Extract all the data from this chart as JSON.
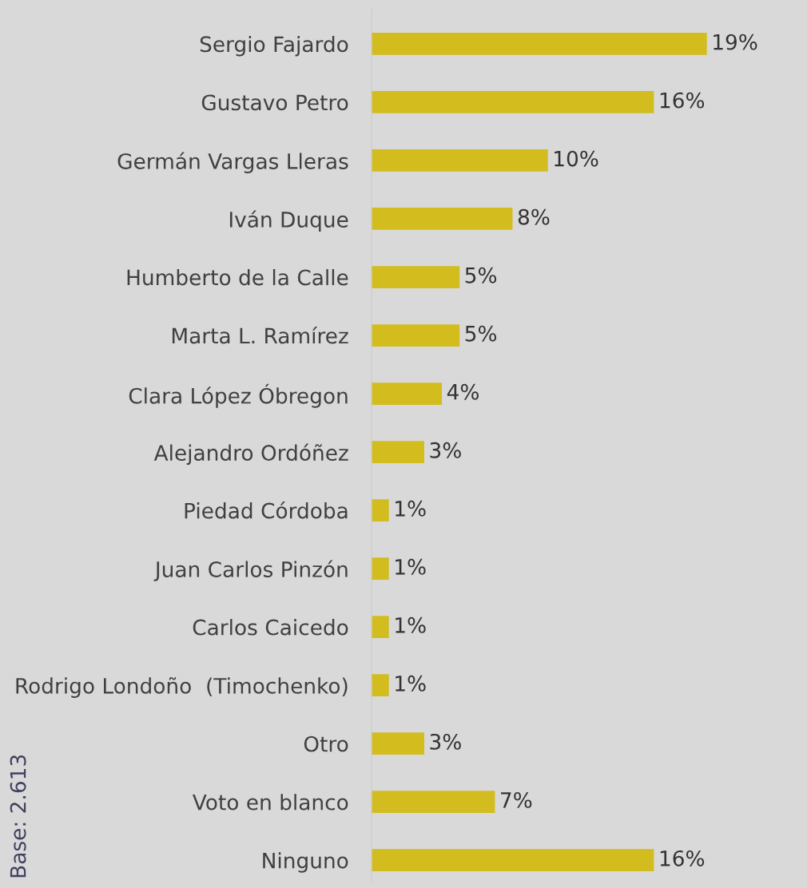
{
  "chart_data": {
    "type": "bar",
    "orientation": "horizontal",
    "color": "#d2bc1e",
    "categories": [
      "Sergio Fajardo",
      "Gustavo Petro",
      "Germán Vargas Lleras",
      "Iván Duque",
      "Humberto de la Calle",
      "Marta L. Ramírez",
      "Clara López Óbregon",
      "Alejandro Ordóñez",
      "Piedad Córdoba",
      "Juan Carlos Pinzón",
      "Carlos Caicedo",
      "Rodrigo Londoño  (Timochenko)",
      "Otro",
      "Voto en blanco",
      "Ninguno"
    ],
    "values": [
      19,
      16,
      10,
      8,
      5,
      5,
      4,
      3,
      1,
      1,
      1,
      1,
      3,
      7,
      16
    ],
    "value_labels": [
      "19%",
      "16%",
      "10%",
      "8%",
      "5%",
      "5%",
      "4%",
      "3%",
      "1%",
      "1%",
      "1%",
      "1%",
      "3%",
      "7%",
      "16%"
    ],
    "annotations": [
      "Base: 2.613"
    ]
  }
}
